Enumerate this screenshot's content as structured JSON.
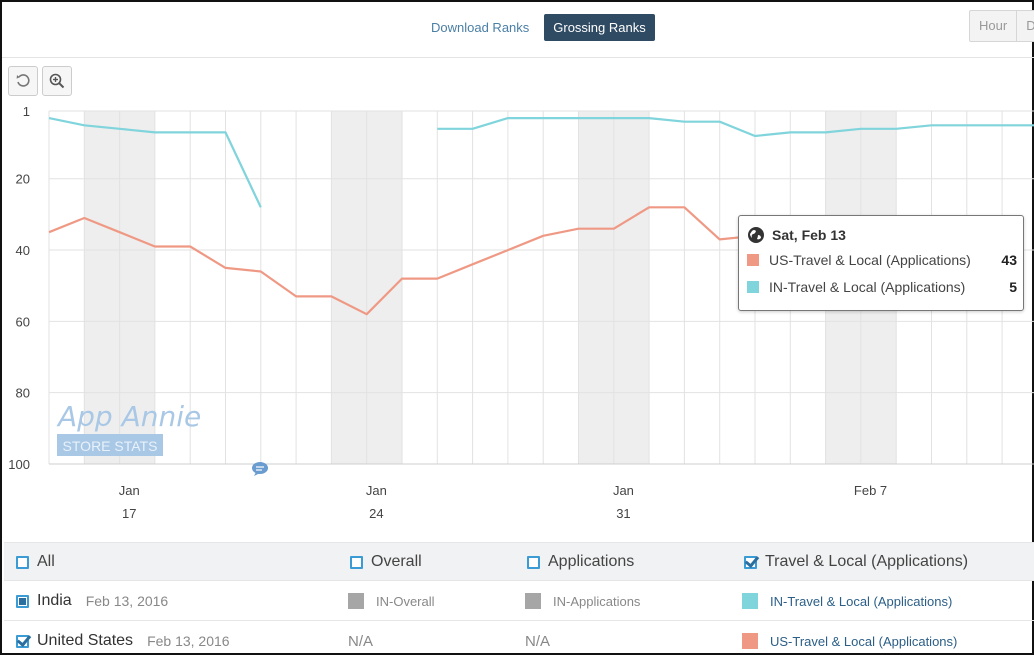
{
  "tabs": {
    "download": "Download Ranks",
    "grossing": "Grossing Ranks"
  },
  "granularity": [
    "Hour",
    "D"
  ],
  "toolbar": {
    "reset_icon": "undo-icon",
    "zoom_icon": "zoom-in-icon"
  },
  "colors": {
    "us": "#ef9985",
    "in": "#80d4dc",
    "grid": "#e2e2e2",
    "band": "#eeeeee"
  },
  "chart_data": {
    "type": "line",
    "y_axis": {
      "inverted": true,
      "ylim": [
        1,
        100
      ],
      "ticks": [
        "1",
        "20",
        "40",
        "60",
        "80",
        "100"
      ]
    },
    "x_labels": [
      {
        "month": "Jan",
        "day": "17"
      },
      {
        "month": "Jan",
        "day": "24"
      },
      {
        "month": "Jan",
        "day": "31"
      },
      {
        "month": "Feb 7",
        "day": ""
      }
    ],
    "x": [
      "Jan 15",
      "Jan 16",
      "Jan 17",
      "Jan 18",
      "Jan 19",
      "Jan 20",
      "Jan 21",
      "Jan 22",
      "Jan 23",
      "Jan 24",
      "Jan 25",
      "Jan 26",
      "Jan 27",
      "Jan 28",
      "Jan 29",
      "Jan 30",
      "Jan 31",
      "Feb 1",
      "Feb 2",
      "Feb 3",
      "Feb 4",
      "Feb 5",
      "Feb 6",
      "Feb 7",
      "Feb 8",
      "Feb 9",
      "Feb 10",
      "Feb 11",
      "Feb 12",
      "Feb 13"
    ],
    "series": [
      {
        "name": "US-Travel & Local (Applications)",
        "values": [
          35,
          31,
          35,
          39,
          39,
          45,
          46,
          53,
          53,
          58,
          48,
          48,
          44,
          40,
          36,
          34,
          34,
          28,
          28,
          37,
          36,
          null,
          null,
          null,
          null,
          null,
          null,
          null,
          null,
          43
        ]
      },
      {
        "name": "IN-Travel & Local (Applications)",
        "values": [
          3,
          5,
          6,
          7,
          7,
          7,
          28,
          null,
          null,
          null,
          null,
          6,
          6,
          3,
          3,
          3,
          3,
          3,
          4,
          4,
          8,
          7,
          7,
          6,
          6,
          5,
          5,
          5,
          5,
          5
        ]
      }
    ],
    "weekend_bands": [
      [
        "Jan 16",
        "Jan 17"
      ],
      [
        "Jan 23",
        "Jan 24"
      ],
      [
        "Jan 30",
        "Jan 31"
      ],
      [
        "Feb 6",
        "Feb 7"
      ]
    ],
    "watermark": {
      "line1": "App Annie",
      "line2": "STORE STATS"
    }
  },
  "tooltip": {
    "date": "Sat, Feb 13",
    "rows": [
      {
        "name": "US-Travel & Local (Applications)",
        "value": "43"
      },
      {
        "name": "IN-Travel & Local (Applications)",
        "value": "5"
      }
    ]
  },
  "legend": {
    "all": "All",
    "overall": "Overall",
    "applications": "Applications",
    "travel": "Travel & Local (Applications)"
  },
  "rows": [
    {
      "country": "India",
      "date": "Feb 13, 2016",
      "overall": "IN-Overall",
      "applications": "IN-Applications",
      "travel": "IN-Travel & Local (Applications)"
    },
    {
      "country": "United States",
      "date": "Feb 13, 2016",
      "overall": "N/A",
      "applications": "N/A",
      "travel": "US-Travel & Local (Applications)"
    }
  ]
}
